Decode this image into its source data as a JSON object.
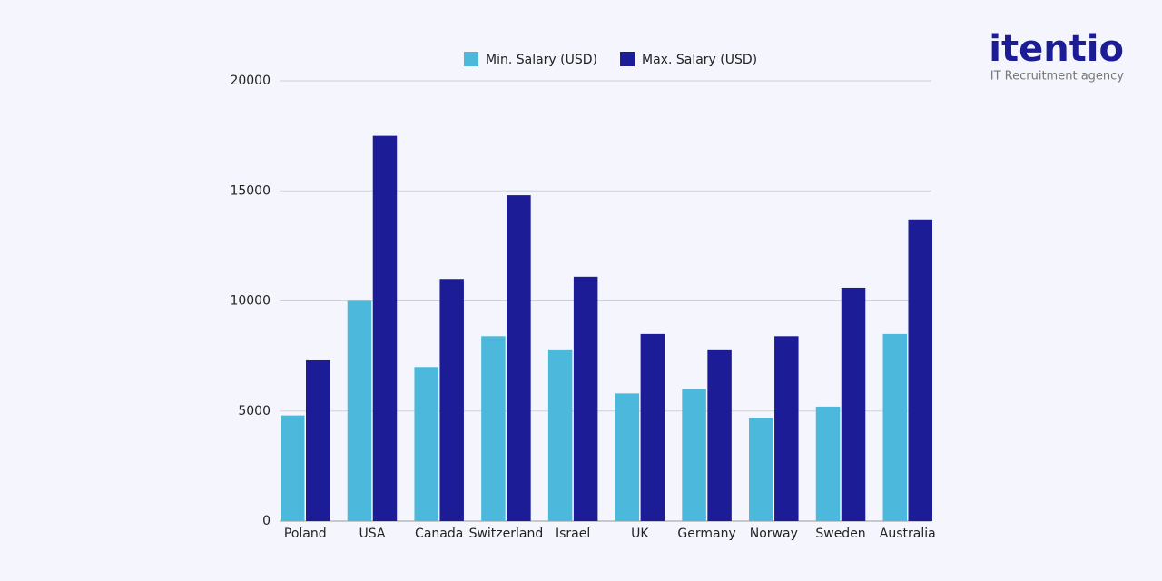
{
  "chart_data": {
    "type": "bar",
    "categories": [
      "Poland",
      "USA",
      "Canada",
      "Switzerland",
      "Israel",
      "UK",
      "Germany",
      "Norway",
      "Sweden",
      "Australia"
    ],
    "series": [
      {
        "name": "Min. Salary (USD)",
        "color": "#4cb8dc",
        "values": [
          4800,
          10000,
          7000,
          8400,
          7800,
          5800,
          6000,
          4700,
          5200,
          8500
        ]
      },
      {
        "name": "Max. Salary (USD)",
        "color": "#1c1c96",
        "values": [
          7300,
          17500,
          11000,
          14800,
          11100,
          8500,
          7800,
          8400,
          10600,
          13700
        ]
      }
    ],
    "ylim": [
      0,
      20000
    ],
    "yticks": [
      0,
      5000,
      10000,
      15000,
      20000
    ],
    "grid": true,
    "legend": "top"
  },
  "logo": {
    "name": "itentio",
    "tagline": "IT Recruitment agency"
  }
}
